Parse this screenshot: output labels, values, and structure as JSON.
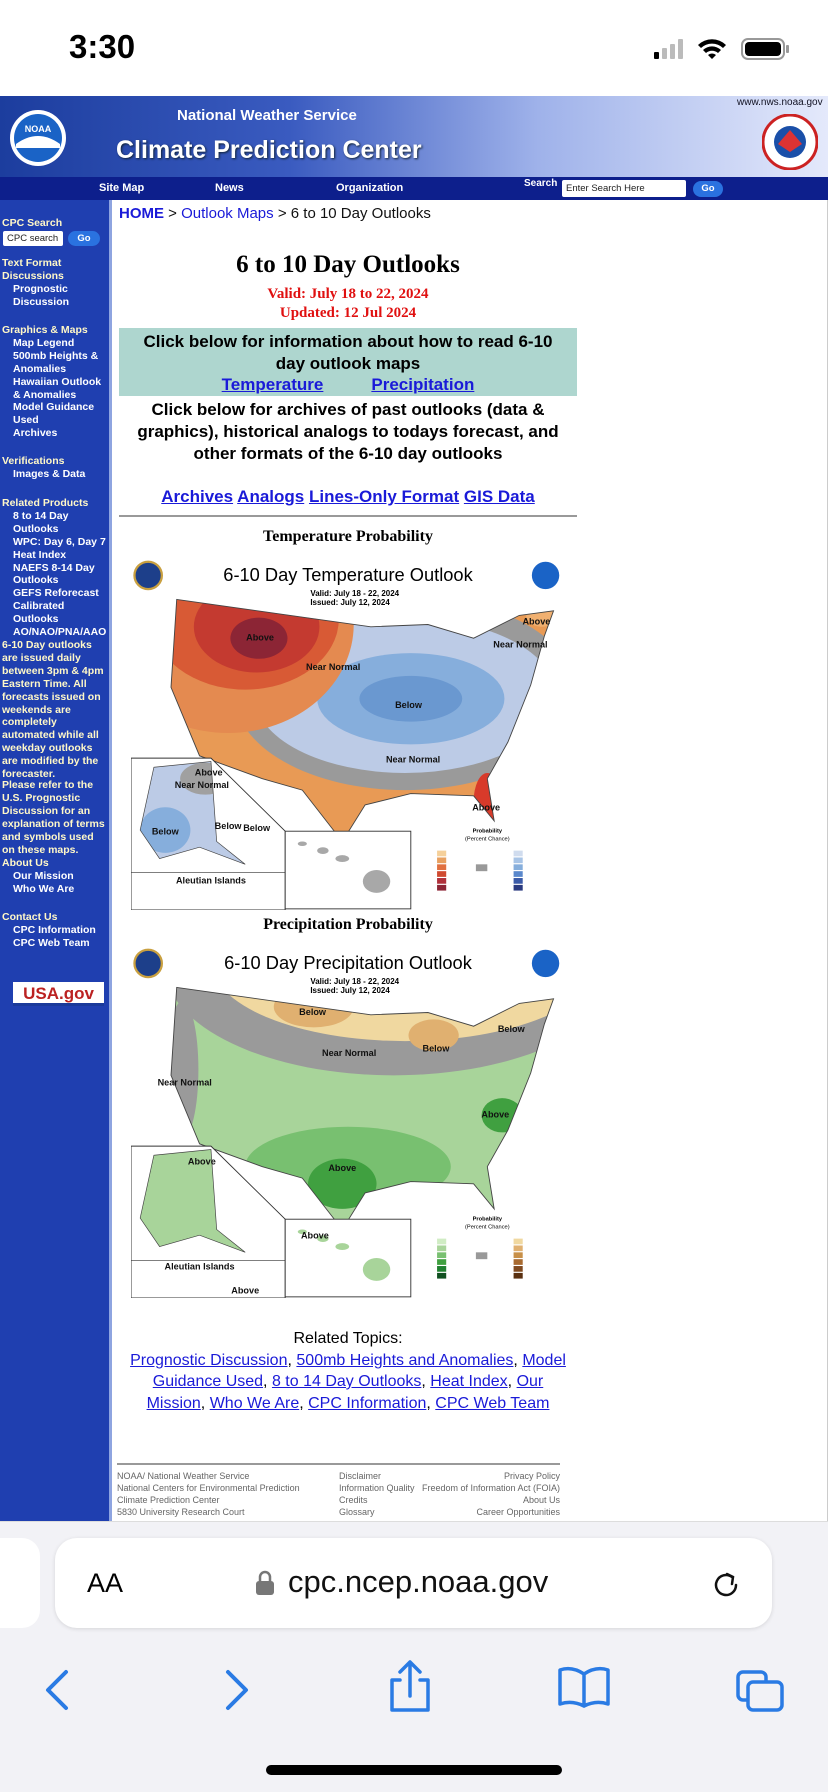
{
  "status_bar": {
    "time": "3:30"
  },
  "header": {
    "site_url": "www.nws.noaa.gov",
    "logo": "NOAA",
    "agency": "National Weather Service",
    "title": "Climate Prediction Center",
    "nav": [
      "Site Map",
      "News",
      "Organization"
    ],
    "search_label": "Search",
    "search_placeholder": "Enter Search Here",
    "search_button": "Go"
  },
  "sidebar": {
    "search_heading": "CPC Search",
    "search_value": "CPC search",
    "search_button": "Go",
    "sections": [
      {
        "heading": "Text Format Discussions",
        "items": [
          "Prognostic Discussion"
        ]
      },
      {
        "heading": "Graphics & Maps",
        "items": [
          "Map Legend",
          "500mb Heights & Anomalies",
          "Hawaiian Outlook & Anomalies",
          "Model Guidance Used",
          "Archives"
        ]
      },
      {
        "heading": "Verifications",
        "items": [
          "Images & Data"
        ]
      },
      {
        "heading": "Related Products",
        "items": [
          "8 to 14 Day Outlooks",
          "WPC: Day 6, Day 7 Heat Index",
          "NAEFS 8-14 Day Outlooks",
          "GEFS Reforecast Calibrated Outlooks",
          "AO/NAO/PNA/AAO"
        ]
      },
      {
        "heading": "About Us",
        "items": [
          "Our Mission",
          "Who We Are"
        ]
      },
      {
        "heading": "Contact Us",
        "items": [
          "CPC Information",
          "CPC Web Team"
        ]
      }
    ],
    "note": "6-10 Day outlooks are issued daily between 3pm & 4pm Eastern Time. All forecasts issued on weekends are completely automated while all weekday outlooks are modified by the forecaster.",
    "refer": "Please refer to the U.S. Prognostic Discussion for an explanation of terms and symbols used on these maps.",
    "usagov": "USA.gov"
  },
  "breadcrumb": {
    "items": [
      "HOME",
      "Outlook Maps",
      "6 to 10 Day Outlooks"
    ],
    "separator": ">"
  },
  "content": {
    "title": "6 to 10 Day Outlooks",
    "valid": "Valid: July 18 to 22, 2024",
    "updated": "Updated: 12 Jul 2024",
    "info_box": {
      "text": "Click below for information about how to read 6-10 day outlook maps",
      "links": [
        "Temperature",
        "Precipitation"
      ]
    },
    "archives": {
      "text": "Click below for archives of past outlooks (data & graphics), historical analogs to todays forecast, and other formats of the 6-10 day outlooks",
      "links": [
        "Archives",
        "Analogs",
        "Lines-Only Format",
        "GIS Data"
      ]
    },
    "temperature": {
      "heading": "Temperature Probability",
      "map_title": "6-10 Day Temperature Outlook",
      "valid": "Valid:  July 18 - 22, 2024",
      "issued": "Issued:  July 12, 2024",
      "labels": [
        "Above",
        "Near Normal",
        "Below",
        "Near Normal",
        "Above",
        "Above",
        "Near Normal",
        "Above",
        "Near Normal",
        "Below",
        "Below",
        "Below"
      ],
      "aleutian": "Aleutian Islands",
      "legend": [
        "Probability",
        "(Percent Chance)"
      ]
    },
    "precipitation": {
      "heading": "Precipitation Probability",
      "map_title": "6-10 Day Precipitation Outlook",
      "valid": "Valid:  July 18 - 22, 2024",
      "issued": "Issued:  July 12, 2024",
      "labels": [
        "Below",
        "Near Normal",
        "Below",
        "Below",
        "Near Normal",
        "Above",
        "Above",
        "Above",
        "Above",
        "Above"
      ],
      "aleutian": "Aleutian Islands",
      "legend": [
        "Probability",
        "(Percent Chance)"
      ]
    },
    "related": {
      "heading": "Related Topics:",
      "links": [
        "Prognostic Discussion",
        "500mb Heights and Anomalies",
        "Model Guidance Used",
        "8 to 14 Day Outlooks",
        "Heat Index",
        "Our Mission",
        "Who We Are",
        "CPC Information",
        "CPC Web Team"
      ],
      "separator": ","
    },
    "footer": [
      [
        "NOAA/ National Weather Service",
        "National Centers for Environmental Prediction",
        "Climate Prediction Center",
        "5830 University Research Court"
      ],
      [
        "Disclaimer",
        "Information Quality",
        "Credits",
        "Glossary"
      ],
      [
        "Privacy Policy",
        "Freedom of Information Act (FOIA)",
        "About Us",
        "Career Opportunities"
      ]
    ]
  },
  "browser": {
    "text_size": "AA",
    "url": "cpc.ncep.noaa.gov"
  }
}
